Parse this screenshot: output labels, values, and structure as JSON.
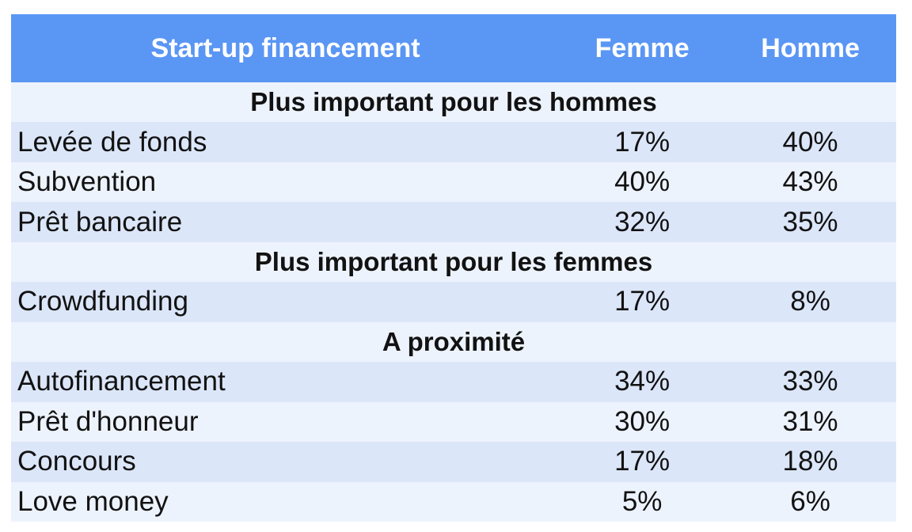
{
  "colors": {
    "header_bg": "#5A96F4",
    "header_text": "#FFFFFF",
    "row_dark": "#DCE6F9",
    "row_light": "#EDF3FC",
    "body_text": "#121212",
    "page_bg": "#FFFFFF"
  },
  "chart_data": {
    "type": "table",
    "title": "Start-up financement",
    "columns": [
      "Start-up financement",
      "Femme",
      "Homme"
    ],
    "legend_position": "none",
    "grid": false,
    "rows": [
      {
        "type": "section",
        "label": "Plus important pour les hommes"
      },
      {
        "type": "data",
        "label": "Levée de fonds",
        "femme": "17%",
        "homme": "40%"
      },
      {
        "type": "data",
        "label": "Subvention",
        "femme": "40%",
        "homme": "43%"
      },
      {
        "type": "data",
        "label": "Prêt bancaire",
        "femme": "32%",
        "homme": "35%"
      },
      {
        "type": "section",
        "label": "Plus important pour les femmes"
      },
      {
        "type": "data",
        "label": "Crowdfunding",
        "femme": "17%",
        "homme": "8%"
      },
      {
        "type": "section",
        "label": "A proximité"
      },
      {
        "type": "data",
        "label": "Autofinancement",
        "femme": "34%",
        "homme": "33%"
      },
      {
        "type": "data",
        "label": "Prêt d'honneur",
        "femme": "30%",
        "homme": "31%"
      },
      {
        "type": "data",
        "label": "Concours",
        "femme": "17%",
        "homme": "18%"
      },
      {
        "type": "data",
        "label": "Love money",
        "femme": "5%",
        "homme": "6%"
      }
    ]
  }
}
